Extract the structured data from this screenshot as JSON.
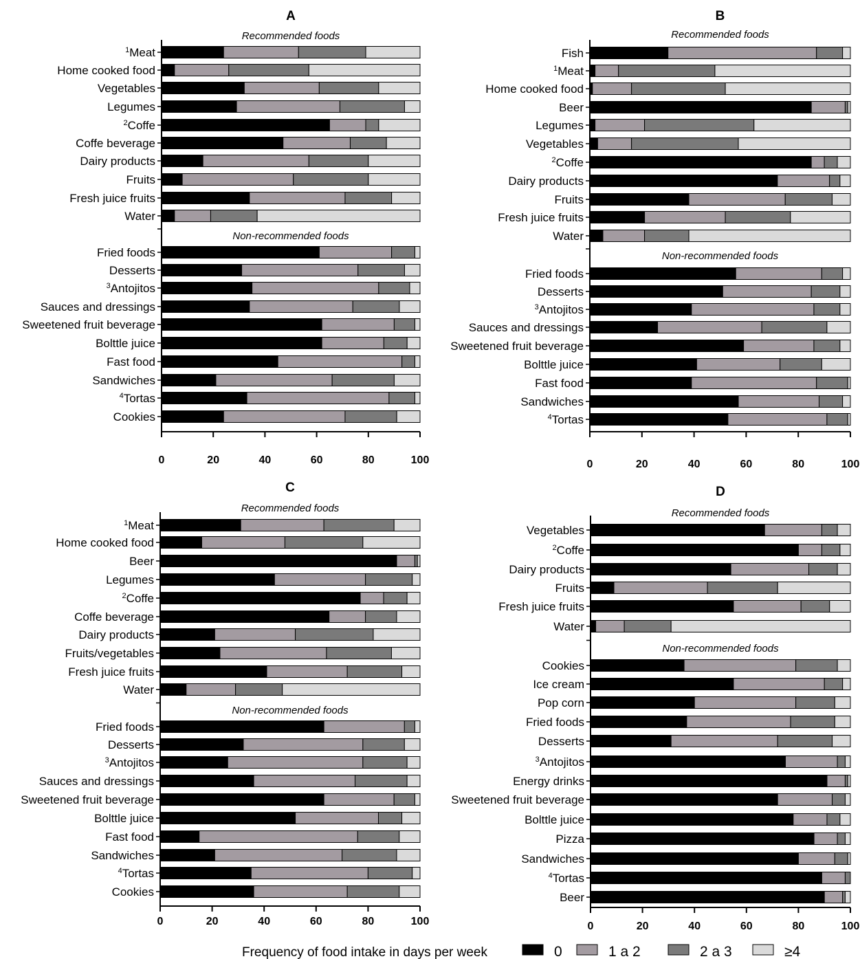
{
  "colors": {
    "c0": "#000000",
    "c1": "#a39ba1",
    "c2": "#7a7a7a",
    "c3": "#dadada",
    "axis": "#000000"
  },
  "legend": {
    "title": "Frequency of food intake in days per week",
    "items": [
      {
        "label": "0",
        "color": "#000000"
      },
      {
        "label": "1 a 2",
        "color": "#a39ba1"
      },
      {
        "label": "2 a 3",
        "color": "#7a7a7a"
      },
      {
        "label": "≥4",
        "color": "#dadada"
      }
    ]
  },
  "chart_data": [
    {
      "type": "bar",
      "orientation": "horizontal",
      "stacked": true,
      "title": "A",
      "xlim": [
        0,
        100
      ],
      "xticks": [
        0,
        20,
        40,
        60,
        80,
        100
      ],
      "series_names": [
        "0",
        "1 a 2",
        "2 a 3",
        "≥4"
      ],
      "groups": [
        {
          "label": "Recommended foods",
          "categories": [
            {
              "sup": "1",
              "name": "Meat",
              "values": [
                24,
                29,
                26,
                21
              ]
            },
            {
              "sup": "",
              "name": "Home cooked food",
              "values": [
                5,
                21,
                31,
                43
              ]
            },
            {
              "sup": "",
              "name": "Vegetables",
              "values": [
                32,
                29,
                23,
                16
              ]
            },
            {
              "sup": "",
              "name": "Legumes",
              "values": [
                29,
                40,
                25,
                6
              ]
            },
            {
              "sup": "2",
              "name": "Coffe",
              "values": [
                65,
                14,
                5,
                16
              ]
            },
            {
              "sup": "",
              "name": "Coffe beverage",
              "values": [
                47,
                26,
                14,
                13
              ]
            },
            {
              "sup": "",
              "name": "Dairy products",
              "values": [
                16,
                41,
                23,
                20
              ]
            },
            {
              "sup": "",
              "name": "Fruits",
              "values": [
                8,
                43,
                29,
                20
              ]
            },
            {
              "sup": "",
              "name": "Fresh juice fruits",
              "values": [
                34,
                37,
                18,
                11
              ]
            },
            {
              "sup": "",
              "name": "Water",
              "values": [
                5,
                14,
                18,
                63
              ]
            }
          ]
        },
        {
          "label": "Non-recommended foods",
          "categories": [
            {
              "sup": "",
              "name": "Fried foods",
              "values": [
                61,
                28,
                9,
                2
              ]
            },
            {
              "sup": "",
              "name": "Desserts",
              "values": [
                31,
                45,
                18,
                6
              ]
            },
            {
              "sup": "3",
              "name": "Antojitos",
              "values": [
                35,
                49,
                12,
                4
              ]
            },
            {
              "sup": "",
              "name": "Sauces and dressings",
              "values": [
                34,
                40,
                18,
                8
              ]
            },
            {
              "sup": "",
              "name": "Sweetened fruit beverage",
              "values": [
                62,
                28,
                8,
                2
              ]
            },
            {
              "sup": "",
              "name": "Bolttle juice",
              "values": [
                62,
                24,
                9,
                5
              ]
            },
            {
              "sup": "",
              "name": "Fast food",
              "values": [
                45,
                48,
                5,
                2
              ]
            },
            {
              "sup": "",
              "name": "Sandwiches",
              "values": [
                21,
                45,
                24,
                10
              ]
            },
            {
              "sup": "4",
              "name": "Tortas",
              "values": [
                33,
                55,
                10,
                2
              ]
            },
            {
              "sup": "",
              "name": "Cookies",
              "values": [
                24,
                47,
                20,
                9
              ]
            }
          ]
        }
      ]
    },
    {
      "type": "bar",
      "orientation": "horizontal",
      "stacked": true,
      "title": "B",
      "xlim": [
        0,
        100
      ],
      "xticks": [
        0,
        20,
        40,
        60,
        80,
        100
      ],
      "series_names": [
        "0",
        "1 a 2",
        "2 a 3",
        "≥4"
      ],
      "groups": [
        {
          "label": "Recommended foods",
          "categories": [
            {
              "sup": "",
              "name": "Fish",
              "values": [
                30,
                57,
                10,
                3
              ]
            },
            {
              "sup": "1",
              "name": "Meat",
              "values": [
                2,
                9,
                37,
                52
              ]
            },
            {
              "sup": "",
              "name": "Home cooked food",
              "values": [
                1,
                15,
                36,
                48
              ]
            },
            {
              "sup": "",
              "name": "Beer",
              "values": [
                85,
                13,
                1,
                1
              ]
            },
            {
              "sup": "",
              "name": "Legumes",
              "values": [
                2,
                19,
                42,
                37
              ]
            },
            {
              "sup": "",
              "name": "Vegetables",
              "values": [
                3,
                13,
                41,
                43
              ]
            },
            {
              "sup": "2",
              "name": "Coffe",
              "values": [
                85,
                5,
                5,
                5
              ]
            },
            {
              "sup": "",
              "name": "Dairy products",
              "values": [
                72,
                20,
                4,
                4
              ]
            },
            {
              "sup": "",
              "name": "Fruits",
              "values": [
                38,
                37,
                18,
                7
              ]
            },
            {
              "sup": "",
              "name": "Fresh juice fruits",
              "values": [
                21,
                31,
                25,
                23
              ]
            },
            {
              "sup": "",
              "name": "Water",
              "values": [
                5,
                16,
                17,
                62
              ]
            }
          ]
        },
        {
          "label": "Non-recommended foods",
          "categories": [
            {
              "sup": "",
              "name": "Fried foods",
              "values": [
                56,
                33,
                8,
                3
              ]
            },
            {
              "sup": "",
              "name": "Desserts",
              "values": [
                51,
                34,
                11,
                4
              ]
            },
            {
              "sup": "3",
              "name": "Antojitos",
              "values": [
                39,
                47,
                10,
                4
              ]
            },
            {
              "sup": "",
              "name": "Sauces and dressings",
              "values": [
                26,
                40,
                25,
                9
              ]
            },
            {
              "sup": "",
              "name": "Sweetened fruit beverage",
              "values": [
                59,
                27,
                10,
                4
              ]
            },
            {
              "sup": "",
              "name": "Bolttle juice",
              "values": [
                41,
                32,
                16,
                11
              ]
            },
            {
              "sup": "",
              "name": "Fast food",
              "values": [
                39,
                48,
                12,
                1
              ]
            },
            {
              "sup": "",
              "name": "Sandwiches",
              "values": [
                57,
                31,
                9,
                3
              ]
            },
            {
              "sup": "4",
              "name": "Tortas",
              "values": [
                53,
                38,
                8,
                1
              ]
            }
          ]
        }
      ]
    },
    {
      "type": "bar",
      "orientation": "horizontal",
      "stacked": true,
      "title": "C",
      "xlim": [
        0,
        100
      ],
      "xticks": [
        0,
        20,
        40,
        60,
        80,
        100
      ],
      "series_names": [
        "0",
        "1 a 2",
        "2 a 3",
        "≥4"
      ],
      "groups": [
        {
          "label": "Recommended foods",
          "categories": [
            {
              "sup": "1",
              "name": "Meat",
              "values": [
                31,
                32,
                27,
                10
              ]
            },
            {
              "sup": "",
              "name": "Home cooked food",
              "values": [
                16,
                32,
                30,
                22
              ]
            },
            {
              "sup": "",
              "name": "Beer",
              "values": [
                91,
                7,
                1,
                1
              ]
            },
            {
              "sup": "",
              "name": "Legumes",
              "values": [
                44,
                35,
                18,
                3
              ]
            },
            {
              "sup": "2",
              "name": "Coffe",
              "values": [
                77,
                9,
                9,
                5
              ]
            },
            {
              "sup": "",
              "name": "Coffe beverage",
              "values": [
                65,
                14,
                12,
                9
              ]
            },
            {
              "sup": "",
              "name": "Dairy products",
              "values": [
                21,
                31,
                30,
                18
              ]
            },
            {
              "sup": "",
              "name": "Fruits/vegetables",
              "values": [
                23,
                41,
                25,
                11
              ]
            },
            {
              "sup": "",
              "name": "Fresh juice fruits",
              "values": [
                41,
                31,
                21,
                7
              ]
            },
            {
              "sup": "",
              "name": "Water",
              "values": [
                10,
                19,
                18,
                53
              ]
            }
          ]
        },
        {
          "label": "Non-recommended foods",
          "categories": [
            {
              "sup": "",
              "name": "Fried foods",
              "values": [
                63,
                31,
                4,
                2
              ]
            },
            {
              "sup": "",
              "name": "Desserts",
              "values": [
                32,
                46,
                16,
                6
              ]
            },
            {
              "sup": "3",
              "name": "Antojitos",
              "values": [
                26,
                52,
                17,
                5
              ]
            },
            {
              "sup": "",
              "name": "Sauces and dressings",
              "values": [
                36,
                39,
                20,
                5
              ]
            },
            {
              "sup": "",
              "name": "Sweetened fruit beverage",
              "values": [
                63,
                27,
                8,
                2
              ]
            },
            {
              "sup": "",
              "name": "Bolttle juice",
              "values": [
                52,
                32,
                9,
                7
              ]
            },
            {
              "sup": "",
              "name": "Fast food",
              "values": [
                15,
                61,
                16,
                8
              ]
            },
            {
              "sup": "",
              "name": "Sandwiches",
              "values": [
                21,
                49,
                21,
                9
              ]
            },
            {
              "sup": "4",
              "name": "Tortas",
              "values": [
                35,
                45,
                17,
                3
              ]
            },
            {
              "sup": "",
              "name": "Cookies",
              "values": [
                36,
                36,
                20,
                8
              ]
            }
          ]
        }
      ]
    },
    {
      "type": "bar",
      "orientation": "horizontal",
      "stacked": true,
      "title": "D",
      "xlim": [
        0,
        100
      ],
      "xticks": [
        0,
        20,
        40,
        60,
        80,
        100
      ],
      "series_names": [
        "0",
        "1 a 2",
        "2 a 3",
        "≥4"
      ],
      "groups": [
        {
          "label": "Recommended foods",
          "categories": [
            {
              "sup": "",
              "name": "Vegetables",
              "values": [
                67,
                22,
                6,
                5
              ]
            },
            {
              "sup": "2",
              "name": "Coffe",
              "values": [
                80,
                9,
                7,
                4
              ]
            },
            {
              "sup": "",
              "name": "Dairy products",
              "values": [
                54,
                30,
                11,
                5
              ]
            },
            {
              "sup": "",
              "name": "Fruits",
              "values": [
                9,
                36,
                27,
                28
              ]
            },
            {
              "sup": "",
              "name": "Fresh juice fruits",
              "values": [
                55,
                26,
                11,
                8
              ]
            },
            {
              "sup": "",
              "name": "Water",
              "values": [
                2,
                11,
                18,
                69
              ]
            }
          ]
        },
        {
          "label": "Non-recommended foods",
          "categories": [
            {
              "sup": "",
              "name": "Cookies",
              "values": [
                36,
                43,
                16,
                5
              ]
            },
            {
              "sup": "",
              "name": "Ice cream",
              "values": [
                55,
                35,
                7,
                3
              ]
            },
            {
              "sup": "",
              "name": "Pop corn",
              "values": [
                40,
                39,
                15,
                6
              ]
            },
            {
              "sup": "",
              "name": "Fried foods",
              "values": [
                37,
                40,
                17,
                6
              ]
            },
            {
              "sup": "",
              "name": "Desserts",
              "values": [
                31,
                41,
                21,
                7
              ]
            },
            {
              "sup": "3",
              "name": "Antojitos",
              "values": [
                75,
                20,
                3,
                2
              ]
            },
            {
              "sup": "",
              "name": "Energy drinks",
              "values": [
                91,
                7,
                1,
                1
              ]
            },
            {
              "sup": "",
              "name": "Sweetened fruit beverage",
              "values": [
                72,
                21,
                5,
                2
              ]
            },
            {
              "sup": "",
              "name": "Bolttle juice",
              "values": [
                78,
                13,
                5,
                4
              ]
            },
            {
              "sup": "",
              "name": "Pizza",
              "values": [
                86,
                9,
                3,
                2
              ]
            },
            {
              "sup": "",
              "name": "Sandwiches",
              "values": [
                80,
                14,
                5,
                1
              ]
            },
            {
              "sup": "4",
              "name": "Tortas",
              "values": [
                89,
                9,
                2,
                0
              ]
            },
            {
              "sup": "",
              "name": "Beer",
              "values": [
                90,
                7,
                1,
                2
              ]
            }
          ]
        }
      ]
    }
  ]
}
